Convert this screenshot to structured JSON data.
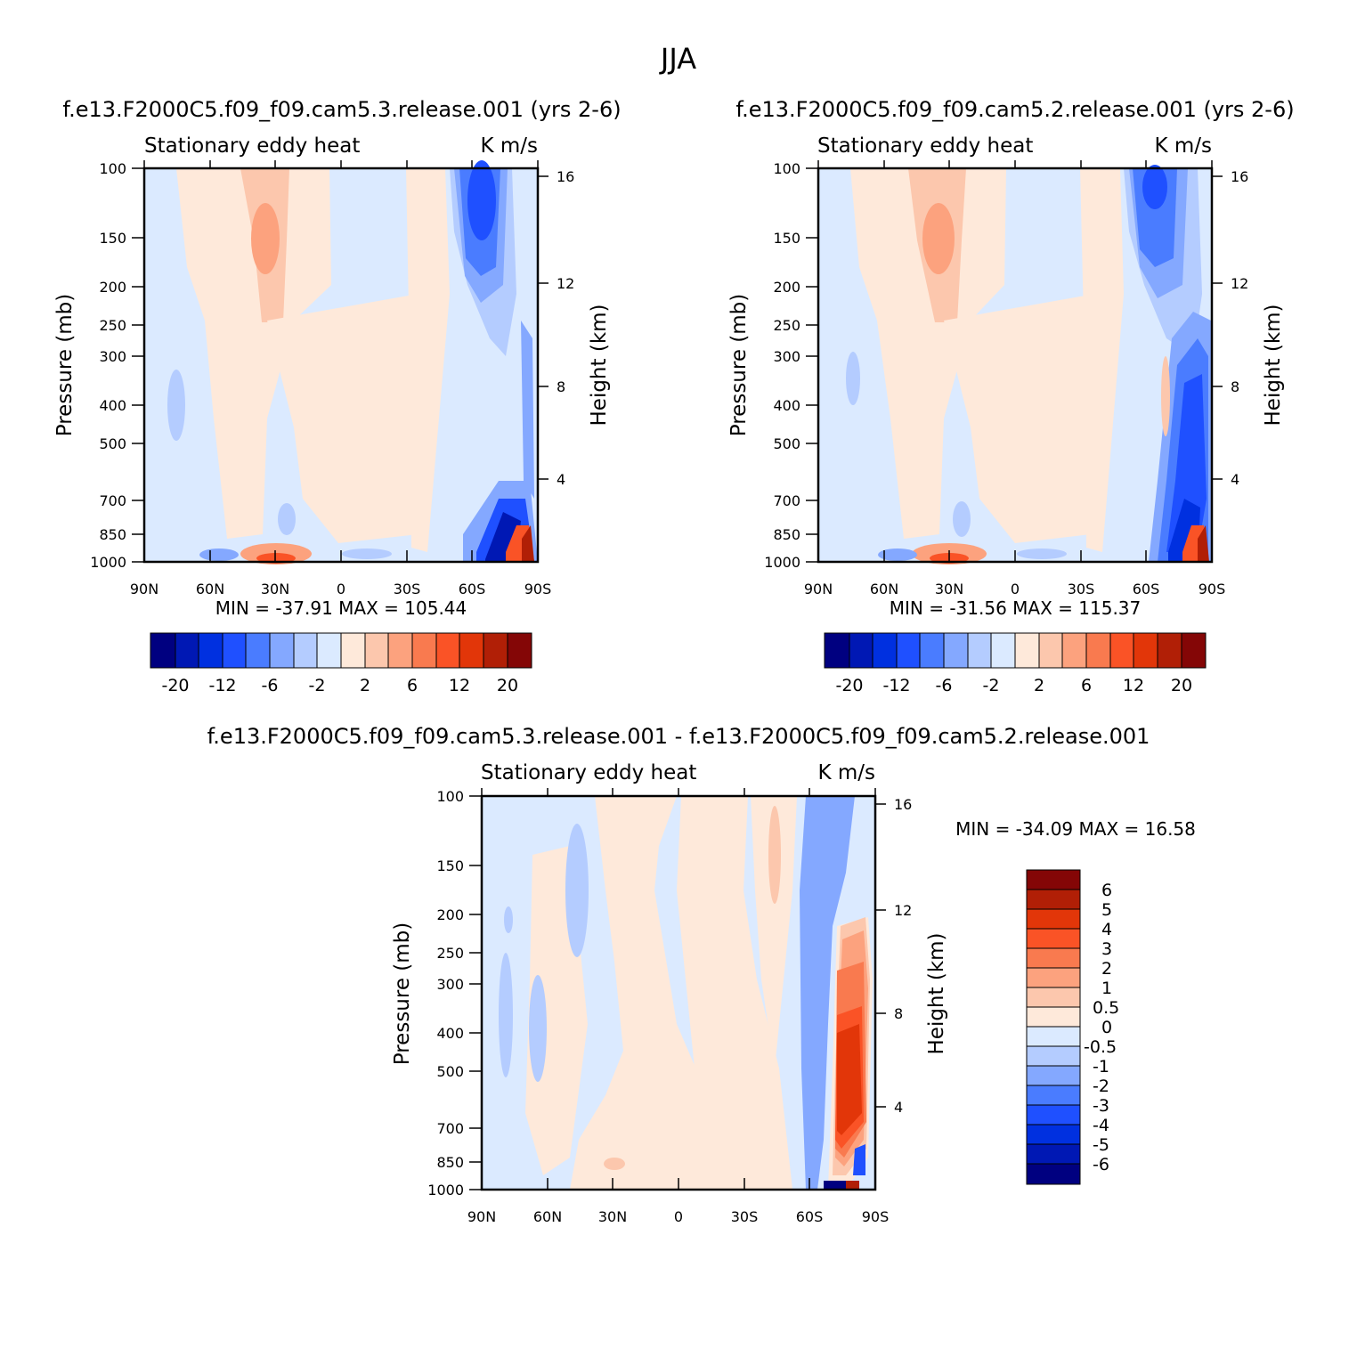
{
  "figure_title": "JJA",
  "colors": {
    "blue": [
      "#000080",
      "#0018b4",
      "#0030e0",
      "#1f50ff",
      "#4a7cff",
      "#84a8ff",
      "#b4ccff",
      "#dbeaff"
    ],
    "red": [
      "#fee9da",
      "#fcc7ad",
      "#fca27e",
      "#f97a4f",
      "#fa5326",
      "#e23609",
      "#b11f06",
      "#840606"
    ]
  },
  "chart_data": [
    {
      "type": "contour",
      "panel": "test",
      "case_title": "f.e13.F2000C5.f09_f09.cam5.3.release.001  (yrs 2-6)",
      "title_left": "Stationary eddy heat",
      "title_right": "K m/s",
      "ylabel": "Pressure (mb)",
      "ylabel_right": "Height (km)",
      "x_ticks": [
        "90N",
        "60N",
        "30N",
        "0",
        "30S",
        "60S",
        "90S"
      ],
      "y_ticks": [
        "100",
        "150",
        "200",
        "250",
        "300",
        "400",
        "500",
        "700",
        "850",
        "1000"
      ],
      "height_ticks": [
        "16",
        "12",
        "8",
        "4"
      ],
      "stats": "MIN = -37.91   MAX = 105.44",
      "contour_levels": [
        "-20",
        "-12",
        "-6",
        "-2",
        "2",
        "6",
        "12",
        "20"
      ]
    },
    {
      "type": "contour",
      "panel": "control",
      "case_title": "f.e13.F2000C5.f09_f09.cam5.2.release.001  (yrs 2-6)",
      "title_left": "Stationary eddy heat",
      "title_right": "K m/s",
      "ylabel": "Pressure (mb)",
      "ylabel_right": "Height (km)",
      "x_ticks": [
        "90N",
        "60N",
        "30N",
        "0",
        "30S",
        "60S",
        "90S"
      ],
      "y_ticks": [
        "100",
        "150",
        "200",
        "250",
        "300",
        "400",
        "500",
        "700",
        "850",
        "1000"
      ],
      "height_ticks": [
        "16",
        "12",
        "8",
        "4"
      ],
      "stats": "MIN = -31.56   MAX = 115.37",
      "contour_levels": [
        "-20",
        "-12",
        "-6",
        "-2",
        "2",
        "6",
        "12",
        "20"
      ]
    },
    {
      "type": "contour",
      "panel": "difference",
      "case_title": "f.e13.F2000C5.f09_f09.cam5.3.release.001 - f.e13.F2000C5.f09_f09.cam5.2.release.001",
      "title_left": "Stationary eddy heat",
      "title_right": "K m/s",
      "ylabel": "Pressure (mb)",
      "ylabel_right": "Height (km)",
      "x_ticks": [
        "90N",
        "60N",
        "30N",
        "0",
        "30S",
        "60S",
        "90S"
      ],
      "y_ticks": [
        "100",
        "150",
        "200",
        "250",
        "300",
        "400",
        "500",
        "700",
        "850",
        "1000"
      ],
      "height_ticks": [
        "16",
        "12",
        "8",
        "4"
      ],
      "stats": "MIN = -34.09   MAX =   16.58",
      "contour_levels": [
        "6",
        "5",
        "4",
        "3",
        "2",
        "1",
        "0.5",
        "0",
        "-0.5",
        "-1",
        "-2",
        "-3",
        "-4",
        "-5",
        "-6"
      ]
    }
  ]
}
